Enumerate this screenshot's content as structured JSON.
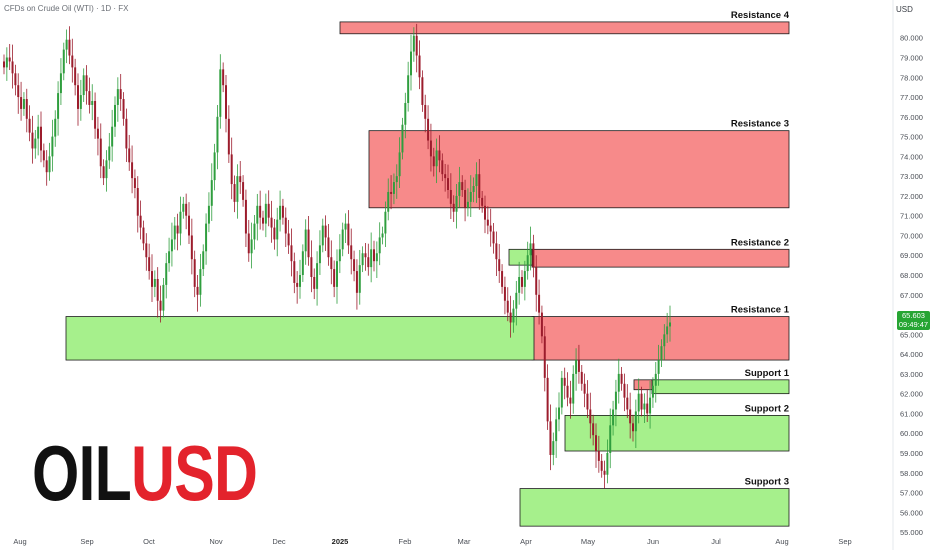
{
  "header": {
    "symbol_line": "CFDs on Crude Oil (WTI) · 1D · FX",
    "currency": "USD"
  },
  "logo": {
    "part1": "OIL",
    "part2": "USD"
  },
  "last_price": {
    "value": "65.603",
    "countdown": "09:49:47"
  },
  "colors": {
    "resistance_fill": "#f78a8a",
    "support_fill": "#a6f08c",
    "candle_up": "#2f9e3e",
    "candle_down": "#9c1c2c",
    "price_tag": "#26a533"
  },
  "chart_data": {
    "type": "candlestick",
    "y_axis": {
      "range": [
        54.6,
        81.2
      ],
      "ticks": [
        "55.000",
        "56.000",
        "57.000",
        "58.000",
        "59.000",
        "60.000",
        "61.000",
        "62.000",
        "63.000",
        "64.000",
        "65.000",
        "66.000",
        "67.000",
        "68.000",
        "69.000",
        "70.000",
        "71.000",
        "72.000",
        "73.000",
        "74.000",
        "75.000",
        "76.000",
        "77.000",
        "78.000",
        "79.000",
        "80.000"
      ]
    },
    "x_axis": {
      "ticks": [
        "Aug",
        "Sep",
        "Oct",
        "Nov",
        "Dec",
        "2025",
        "Feb",
        "Mar",
        "Apr",
        "May",
        "Jun",
        "Jul",
        "Aug",
        "Sep"
      ]
    },
    "zones": [
      {
        "label": "Resistance 4",
        "kind": "resistance",
        "low": 80.2,
        "high": 80.8
      },
      {
        "label": "Resistance 3",
        "kind": "resistance",
        "low": 71.4,
        "high": 75.3
      },
      {
        "label": "Resistance 2",
        "kind": "resistance",
        "low": 68.4,
        "high": 69.3
      },
      {
        "label": "Resistance 1",
        "kind": "resistance",
        "low": 63.7,
        "high": 65.9
      },
      {
        "label": "",
        "kind": "resistance",
        "low": 62.2,
        "high": 62.7
      },
      {
        "label": "Support 1",
        "kind": "support",
        "low": 62.0,
        "high": 62.7
      },
      {
        "label": "Support 2",
        "kind": "support",
        "low": 59.1,
        "high": 60.9
      },
      {
        "label": "Support 3",
        "kind": "support",
        "low": 55.3,
        "high": 57.2
      },
      {
        "label": "",
        "kind": "support",
        "low": 63.7,
        "high": 65.9
      },
      {
        "label": "",
        "kind": "support",
        "low": 68.5,
        "high": 69.3
      }
    ],
    "series": [
      {
        "close": [
          78.5,
          79.0,
          78.8,
          78.2,
          77.6,
          77.0,
          76.4,
          76.9,
          75.9,
          75.2,
          74.4,
          74.9,
          75.5,
          74.3,
          73.8,
          73.2,
          74.0,
          75.0,
          75.9,
          77.2,
          78.2,
          79.4,
          79.9,
          79.1,
          78.5,
          77.6,
          76.4,
          77.1,
          78.1,
          77.3,
          76.6,
          76.8,
          75.4,
          74.9,
          73.5,
          72.9,
          73.8,
          74.5,
          75.5,
          76.6,
          77.4,
          76.9,
          75.9,
          74.4,
          73.7,
          72.9,
          72.4,
          71.0,
          70.4,
          69.6,
          68.9,
          68.2,
          67.4,
          67.8,
          66.7,
          66.2,
          67.5,
          68.6,
          69.2,
          69.8,
          70.5,
          70.1,
          71.2,
          71.6,
          71.0,
          70.0,
          68.8,
          67.4,
          67.0,
          68.3,
          69.2,
          70.6,
          71.5,
          72.8,
          74.2,
          76.0,
          78.4,
          77.6,
          75.9,
          74.1,
          72.6,
          71.7,
          73.0,
          72.7,
          71.8,
          70.1,
          69.1,
          69.8,
          70.6,
          71.5,
          70.9,
          70.6,
          71.6,
          70.9,
          70.4,
          69.8,
          70.8,
          71.5,
          70.9,
          70.1,
          69.5,
          68.7,
          67.6,
          67.4,
          68.0,
          69.2,
          70.3,
          68.9,
          67.9,
          67.3,
          68.6,
          69.5,
          70.5,
          69.9,
          68.9,
          68.3,
          67.4,
          68.7,
          69.3,
          70.3,
          70.6,
          69.5,
          68.8,
          68.2,
          67.1,
          68.5,
          69.1,
          68.9,
          68.4,
          69.3,
          68.7,
          69.1,
          69.9,
          70.1,
          71.2,
          72.2,
          72.1,
          72.7,
          73.0,
          74.2,
          75.6,
          76.7,
          78.1,
          79.3,
          80.1,
          79.1,
          78.0,
          76.6,
          75.9,
          74.8,
          74.0,
          73.5,
          74.3,
          73.8,
          73.1,
          72.9,
          72.3,
          71.6,
          71.2,
          72.0,
          72.7,
          72.3,
          71.4,
          71.7,
          72.2,
          72.5,
          73.1,
          71.9,
          71.5,
          70.8,
          70.5,
          70.2,
          69.6,
          68.8,
          68.2,
          67.4,
          66.7,
          66.1,
          65.6,
          66.3,
          67.1,
          67.9,
          67.4,
          68.2,
          69.0,
          69.6,
          68.4,
          67.0,
          66.1,
          64.9,
          62.8,
          60.6,
          58.9,
          59.6,
          60.7,
          61.3,
          62.8,
          62.4,
          61.8,
          61.5,
          63.0,
          63.7,
          63.1,
          62.5,
          62.0,
          61.2,
          60.5,
          59.9,
          59.1,
          58.6,
          58.1,
          57.9,
          59.0,
          60.4,
          61.2,
          62.1,
          63.0,
          62.5,
          61.8,
          61.2,
          60.5,
          60.1,
          61.1,
          62.0,
          61.2,
          61.5,
          61.0,
          61.8,
          62.4,
          63.0,
          63.7,
          64.4,
          65.0,
          65.4,
          65.6
        ]
      }
    ]
  }
}
